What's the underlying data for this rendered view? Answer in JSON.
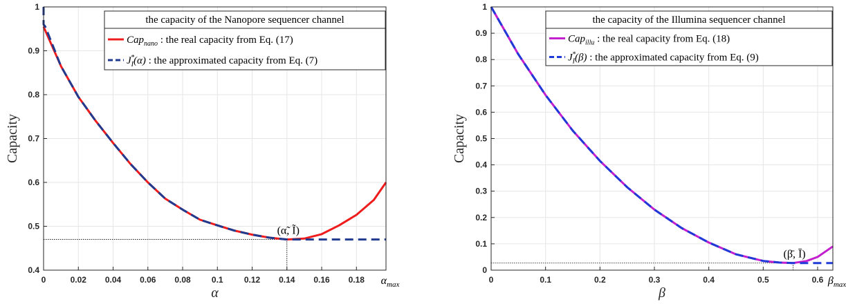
{
  "chart_data": [
    {
      "type": "line",
      "xlabel": "α",
      "ylabel": "Capacity",
      "xlim": [
        0,
        0.197
      ],
      "ylim": [
        0.4,
        1.0
      ],
      "x_ticks": [
        "0",
        "0.02",
        "0.04",
        "0.06",
        "0.08",
        "0.1",
        "0.12",
        "0.14",
        "0.16",
        "0.18"
      ],
      "x_tick_values": [
        0,
        0.02,
        0.04,
        0.06,
        0.08,
        0.1,
        0.12,
        0.14,
        0.16,
        0.18
      ],
      "x_end_label": "α",
      "x_end_label_sub": "max",
      "y_ticks": [
        "0.4",
        "0.5",
        "0.6",
        "0.7",
        "0.8",
        "0.9",
        "1"
      ],
      "y_tick_values": [
        0.4,
        0.5,
        0.6,
        0.7,
        0.8,
        0.9,
        1.0
      ],
      "grid": true,
      "legend_placement": "top-right",
      "legend_title": "the capacity of the Nanopore sequencer channel",
      "annotation": {
        "text": "(α̃, Ĩ)",
        "x": 0.14,
        "y": 0.47
      },
      "series": [
        {
          "name": "Cap_nano : the real capacity from Eq. (17)",
          "legend_main": "Cap",
          "legend_sub": "nano",
          "legend_rest": " : the real capacity from Eq. (17)",
          "color": "#ee1c1c",
          "style": "solid",
          "x": [
            0,
            0.01,
            0.02,
            0.03,
            0.04,
            0.05,
            0.06,
            0.07,
            0.08,
            0.09,
            0.1,
            0.11,
            0.12,
            0.13,
            0.14,
            0.15,
            0.16,
            0.17,
            0.18,
            0.19,
            0.197
          ],
          "y": [
            0.955,
            0.865,
            0.795,
            0.74,
            0.69,
            0.642,
            0.6,
            0.563,
            0.538,
            0.515,
            0.502,
            0.49,
            0.481,
            0.474,
            0.47,
            0.472,
            0.482,
            0.502,
            0.526,
            0.56,
            0.6
          ]
        },
        {
          "name": "J_I*(α) : the approximated capacity from Eq. (7)",
          "legend_main": "J",
          "legend_sub": "I",
          "legend_sup": "*",
          "legend_arg": "(α)",
          "legend_rest": " : the approximated capacity from Eq. (7)",
          "color": "#1f3a8f",
          "style": "dashed",
          "x": [
            0,
            0,
            0.001,
            0.01,
            0.02,
            0.03,
            0.04,
            0.05,
            0.06,
            0.07,
            0.08,
            0.09,
            0.1,
            0.11,
            0.12,
            0.13,
            0.14,
            0.16,
            0.18,
            0.197
          ],
          "y": [
            1.0,
            0.96,
            0.955,
            0.865,
            0.795,
            0.74,
            0.69,
            0.642,
            0.6,
            0.563,
            0.538,
            0.515,
            0.502,
            0.49,
            0.481,
            0.474,
            0.47,
            0.47,
            0.47,
            0.47
          ]
        }
      ]
    },
    {
      "type": "line",
      "xlabel": "β",
      "ylabel": "Capacity",
      "xlim": [
        0,
        0.628
      ],
      "ylim": [
        0,
        1.0
      ],
      "x_ticks": [
        "0",
        "0.1",
        "0.2",
        "0.3",
        "0.4",
        "0.5",
        "0.6"
      ],
      "x_tick_values": [
        0,
        0.1,
        0.2,
        0.3,
        0.4,
        0.5,
        0.6
      ],
      "x_end_label": "β",
      "x_end_label_sub": "max",
      "y_ticks": [
        "0",
        "0.1",
        "0.2",
        "0.3",
        "0.4",
        "0.5",
        "0.6",
        "0.7",
        "0.8",
        "0.9",
        "1"
      ],
      "y_tick_values": [
        0,
        0.1,
        0.2,
        0.3,
        0.4,
        0.5,
        0.6,
        0.7,
        0.8,
        0.9,
        1.0
      ],
      "grid": true,
      "legend_placement": "top-right",
      "legend_title": "the capacity of the Illumina sequencer channel",
      "annotation": {
        "text": "(β̄, Ī)",
        "x": 0.555,
        "y": 0.027
      },
      "series": [
        {
          "name": "Cap_illu : the real capacity from Eq. (18)",
          "legend_main": "Cap",
          "legend_sub": "illu",
          "legend_rest": " : the real capacity from Eq. (18)",
          "color": "#c21fcf",
          "style": "solid",
          "x": [
            0,
            0.05,
            0.1,
            0.15,
            0.2,
            0.25,
            0.3,
            0.35,
            0.4,
            0.45,
            0.5,
            0.53,
            0.555,
            0.58,
            0.6,
            0.628
          ],
          "y": [
            1.0,
            0.82,
            0.665,
            0.53,
            0.415,
            0.315,
            0.23,
            0.16,
            0.105,
            0.06,
            0.035,
            0.029,
            0.027,
            0.035,
            0.05,
            0.09
          ]
        },
        {
          "name": "J_I*(β) : the approximated capacity from Eq. (9)",
          "legend_main": "J",
          "legend_sub": "I",
          "legend_sup": "*",
          "legend_arg": "(β)",
          "legend_rest": " : the approximated capacity from Eq. (9)",
          "color": "#1f3ad6",
          "style": "dashed",
          "x": [
            0,
            0.05,
            0.1,
            0.15,
            0.2,
            0.25,
            0.3,
            0.35,
            0.4,
            0.45,
            0.5,
            0.53,
            0.555,
            0.6,
            0.628
          ],
          "y": [
            1.0,
            0.82,
            0.665,
            0.53,
            0.415,
            0.315,
            0.23,
            0.16,
            0.105,
            0.06,
            0.035,
            0.029,
            0.027,
            0.027,
            0.027
          ]
        }
      ]
    }
  ]
}
